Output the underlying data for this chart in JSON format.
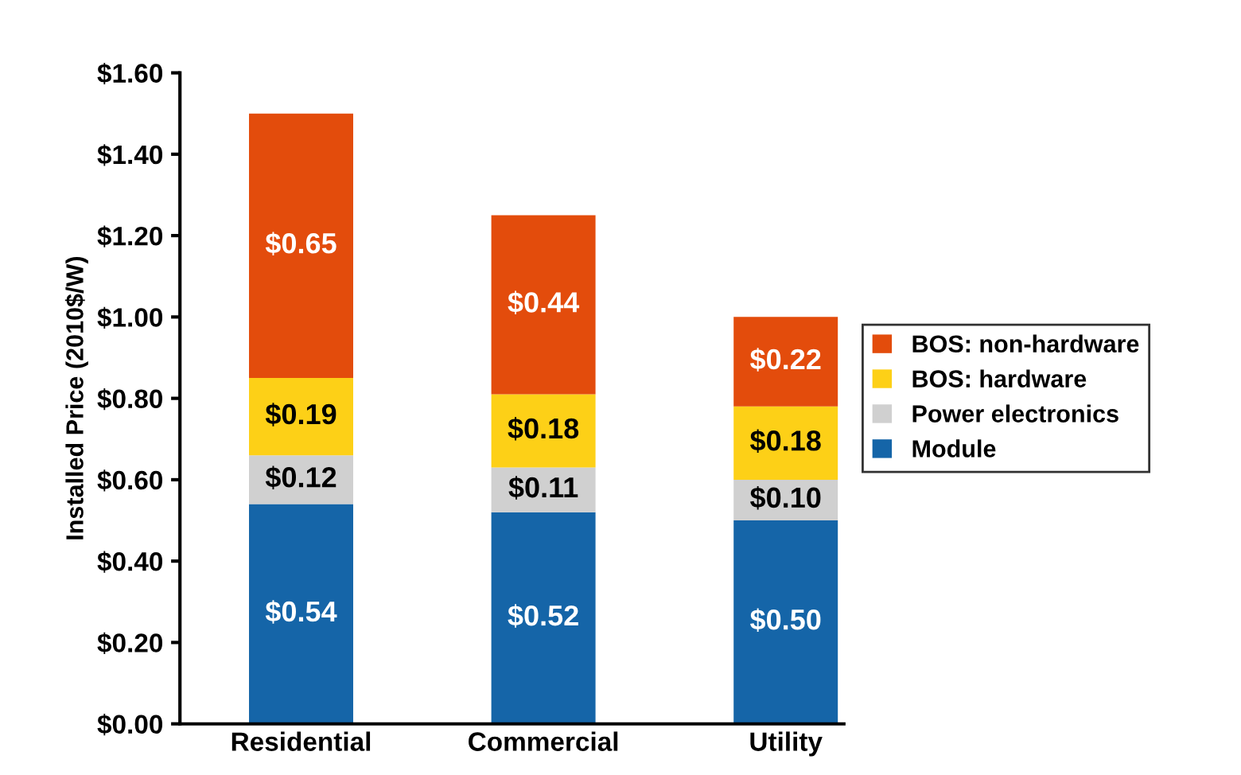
{
  "chart_data": {
    "type": "bar",
    "stacked": true,
    "ylabel": "Installed Price (2010$/W)",
    "categories": [
      "Residential",
      "Commercial",
      "Utility"
    ],
    "series": [
      {
        "name": "Module",
        "color": "#1565a8",
        "values": [
          0.54,
          0.52,
          0.5
        ],
        "value_labels": [
          "$0.54",
          "$0.52",
          "$0.50"
        ]
      },
      {
        "name": "Power electronics",
        "color": "#d0d0d0",
        "values": [
          0.12,
          0.11,
          0.1
        ],
        "value_labels": [
          "$0.12",
          "$0.11",
          "$0.10"
        ]
      },
      {
        "name": "BOS: hardware",
        "color": "#fdd017",
        "values": [
          0.19,
          0.18,
          0.18
        ],
        "value_labels": [
          "$0.19",
          "$0.18",
          "$0.18"
        ]
      },
      {
        "name": "BOS: non-hardware",
        "color": "#e34c0c",
        "values": [
          0.65,
          0.44,
          0.22
        ],
        "value_labels": [
          "$0.65",
          "$0.44",
          "$0.22"
        ]
      }
    ],
    "ylim": [
      0,
      1.6
    ],
    "yticks": [
      {
        "value": 0,
        "label": "$0.00"
      },
      {
        "value": 0.2,
        "label": "$0.20"
      },
      {
        "value": 0.4,
        "label": "$0.40"
      },
      {
        "value": 0.6,
        "label": "$0.60"
      },
      {
        "value": 0.8,
        "label": "$0.80"
      },
      {
        "value": 1.0,
        "label": "$1.00"
      },
      {
        "value": 1.2,
        "label": "$1.20"
      },
      {
        "value": 1.4,
        "label": "$1.40"
      },
      {
        "value": 1.6,
        "label": "$1.60"
      }
    ],
    "grid": false,
    "legend": "right"
  }
}
